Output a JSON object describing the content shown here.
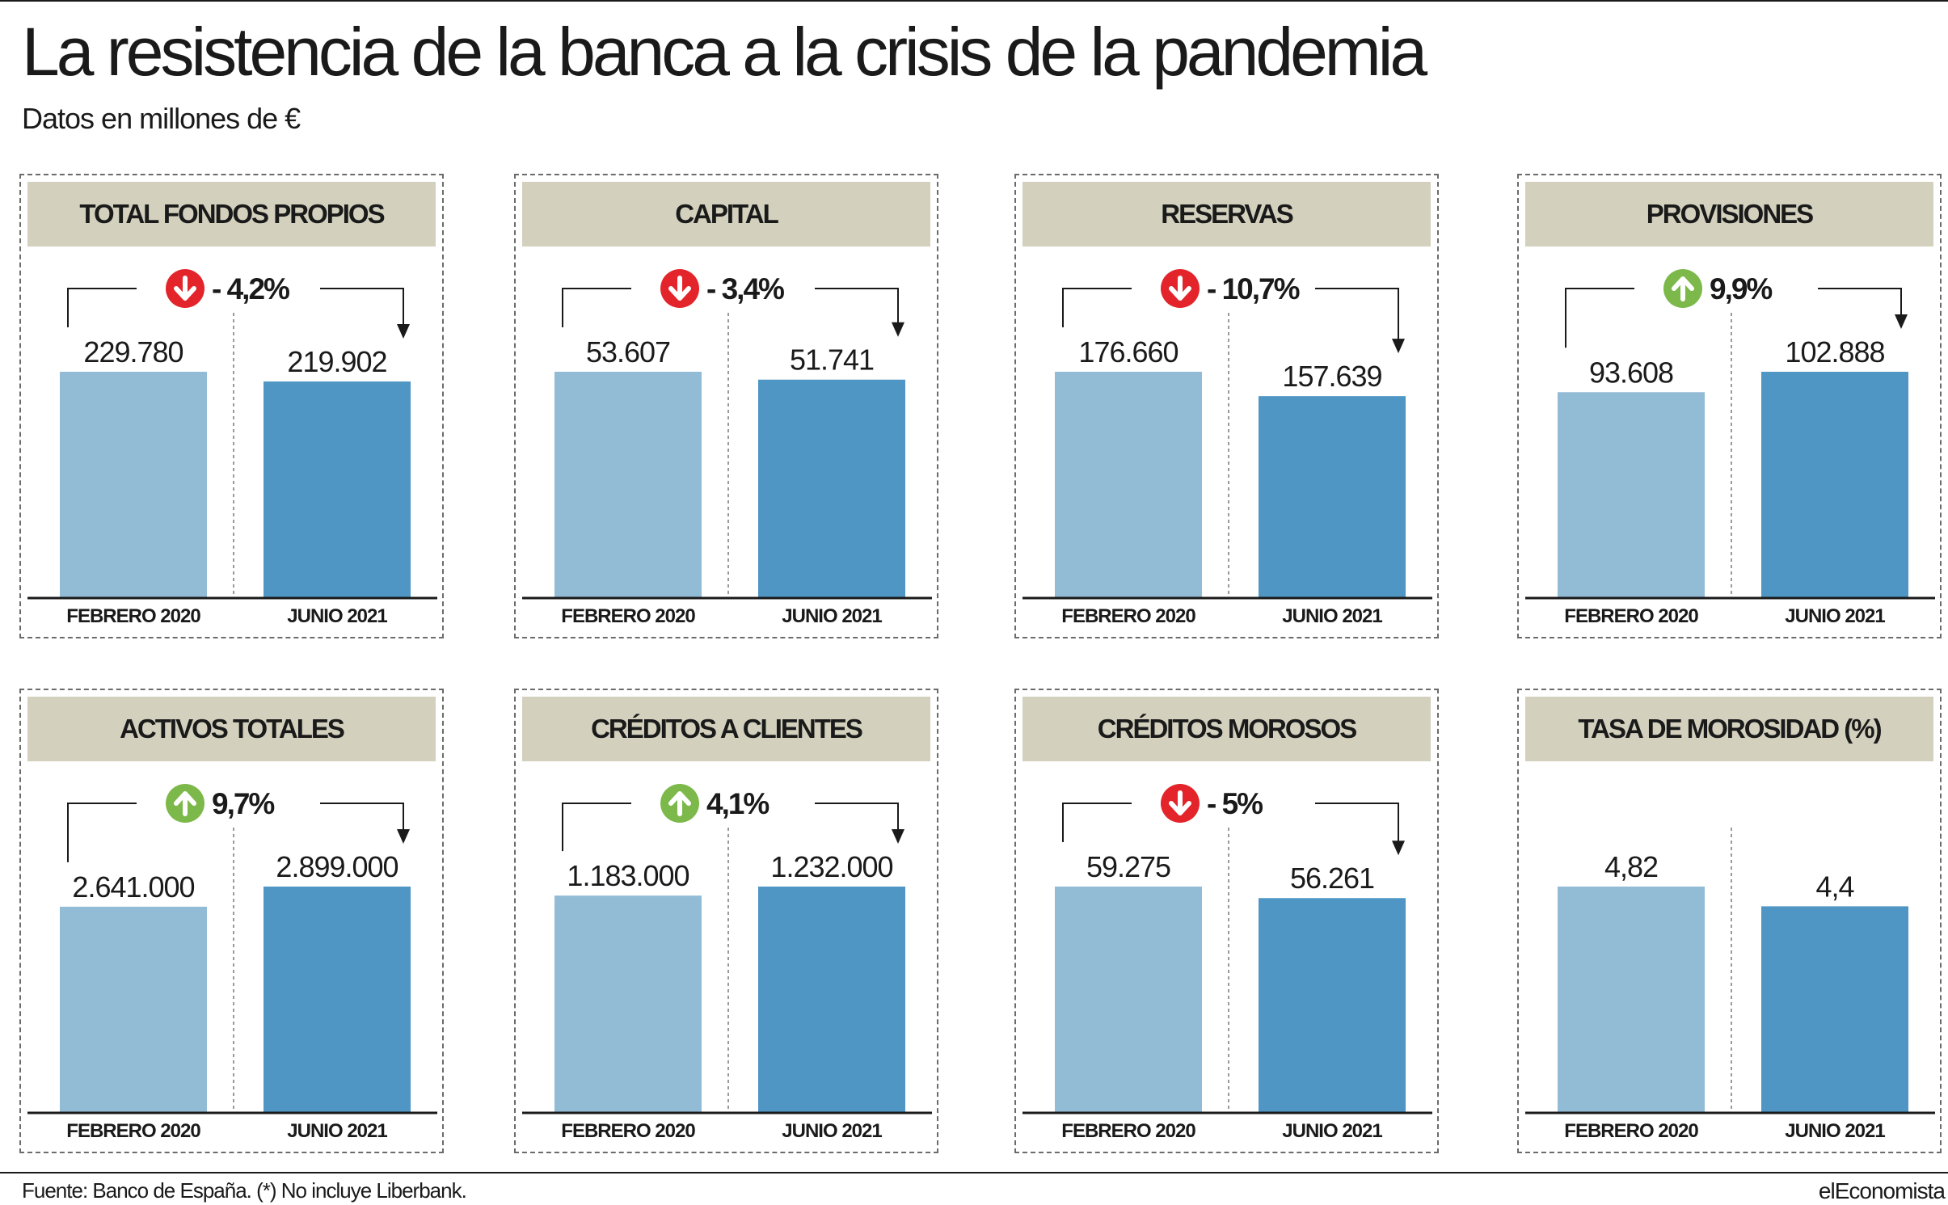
{
  "header": {
    "title": "La resistencia de la banca a la crisis de la pandemia",
    "subtitle": "Datos en millones de €"
  },
  "footer": {
    "source": "Fuente: Banco de España. (*) No incluye Liberbank.",
    "brand": "elEconomista"
  },
  "colors": {
    "bar_feb_2020": "#92bbd6",
    "bar_jun_2021": "#4f96c4",
    "header_band": "#d3d1bd",
    "badge_down": "#e3242b",
    "badge_up": "#7cb94a"
  },
  "chart_data": [
    {
      "type": "bar",
      "title": "TOTAL FONDOS PROPIOS",
      "categories": [
        "FEBRERO 2020",
        "JUNIO 2021"
      ],
      "values": [
        229780,
        219902
      ],
      "value_labels": [
        "229.780",
        "219.902"
      ],
      "change": {
        "label": "- 4,2%",
        "direction": "down",
        "icon": "arrow-down-icon"
      }
    },
    {
      "type": "bar",
      "title": "CAPITAL",
      "categories": [
        "FEBRERO 2020",
        "JUNIO 2021"
      ],
      "values": [
        53607,
        51741
      ],
      "value_labels": [
        "53.607",
        "51.741"
      ],
      "change": {
        "label": "- 3,4%",
        "direction": "down",
        "icon": "arrow-down-icon"
      }
    },
    {
      "type": "bar",
      "title": "RESERVAS",
      "categories": [
        "FEBRERO 2020",
        "JUNIO 2021"
      ],
      "values": [
        176660,
        157639
      ],
      "value_labels": [
        "176.660",
        "157.639"
      ],
      "change": {
        "label": "- 10,7%",
        "direction": "down",
        "icon": "arrow-down-icon"
      }
    },
    {
      "type": "bar",
      "title": "PROVISIONES",
      "categories": [
        "FEBRERO 2020",
        "JUNIO 2021"
      ],
      "values": [
        93608,
        102888
      ],
      "value_labels": [
        "93.608",
        "102.888"
      ],
      "change": {
        "label": "9,9%",
        "direction": "up",
        "icon": "arrow-up-icon"
      }
    },
    {
      "type": "bar",
      "title": "ACTIVOS TOTALES",
      "categories": [
        "FEBRERO 2020",
        "JUNIO 2021"
      ],
      "values": [
        2641000,
        2899000
      ],
      "value_labels": [
        "2.641.000",
        "2.899.000"
      ],
      "change": {
        "label": "9,7%",
        "direction": "up",
        "icon": "arrow-up-icon"
      }
    },
    {
      "type": "bar",
      "title": "CRÉDITOS A CLIENTES",
      "categories": [
        "FEBRERO 2020",
        "JUNIO 2021"
      ],
      "values": [
        1183000,
        1232000
      ],
      "value_labels": [
        "1.183.000",
        "1.232.000"
      ],
      "change": {
        "label": "4,1%",
        "direction": "up",
        "icon": "arrow-up-icon"
      }
    },
    {
      "type": "bar",
      "title": "CRÉDITOS MOROSOS",
      "categories": [
        "FEBRERO 2020",
        "JUNIO 2021"
      ],
      "values": [
        59275,
        56261
      ],
      "value_labels": [
        "59.275",
        "56.261"
      ],
      "change": {
        "label": "- 5%",
        "direction": "down",
        "icon": "arrow-down-icon"
      }
    },
    {
      "type": "bar",
      "title": "TASA DE MOROSIDAD (%)",
      "categories": [
        "FEBRERO 2020",
        "JUNIO 2021"
      ],
      "values": [
        4.82,
        4.4
      ],
      "value_labels": [
        "4,82",
        "4,4"
      ],
      "change": null
    }
  ]
}
